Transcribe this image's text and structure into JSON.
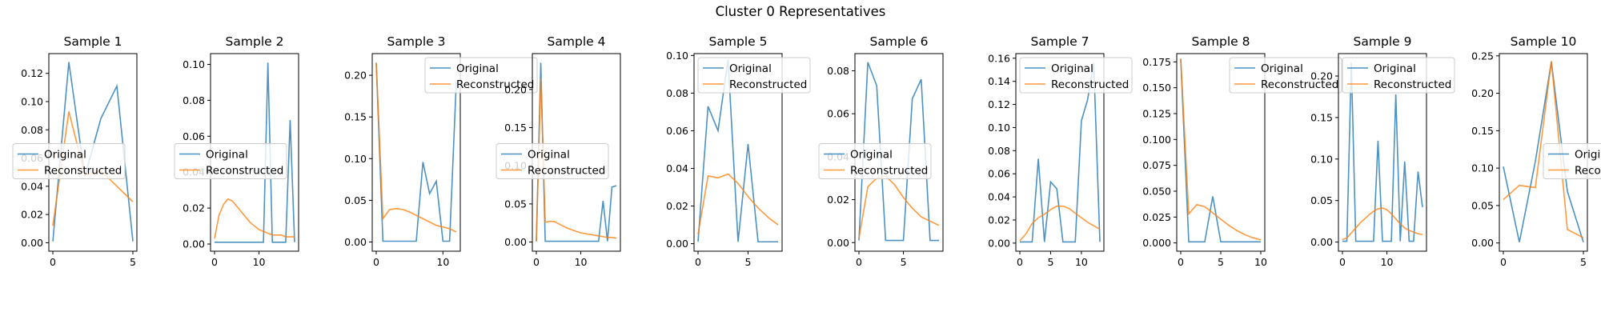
{
  "figure": {
    "title": "Cluster 0 Representatives"
  },
  "colors": {
    "original": "#1f77b4",
    "reconstructed": "#ff7f0e"
  },
  "legend": {
    "position": "variable",
    "labels": [
      "Original",
      "Reconstructed"
    ]
  },
  "chart_data": [
    {
      "type": "line",
      "title": "Sample 1",
      "xlim": [
        -0.25,
        5.25
      ],
      "ylim": [
        -0.006,
        0.134
      ],
      "xticks": [
        0,
        5
      ],
      "yticks": [
        0,
        0.02,
        0.04,
        0.06,
        0.08,
        0.1,
        0.12
      ],
      "xtick_labels": [
        "0",
        "5"
      ],
      "ytick_labels": [
        "0.00",
        "0.02",
        "0.04",
        "0.06",
        "0.08",
        "0.10",
        "0.12"
      ],
      "legend_loc": "center left",
      "series": [
        {
          "name": "Original",
          "x": [
            0,
            1,
            2,
            3,
            4,
            5
          ],
          "y": [
            0.001,
            0.128,
            0.047,
            0.088,
            0.111,
            0.001
          ]
        },
        {
          "name": "Reconstructed",
          "x": [
            0,
            1,
            2,
            3,
            4,
            5
          ],
          "y": [
            0.012,
            0.093,
            0.048,
            0.051,
            0.04,
            0.029
          ]
        }
      ]
    },
    {
      "type": "line",
      "title": "Sample 2",
      "xlim": [
        -0.9,
        18.9
      ],
      "ylim": [
        -0.004,
        0.106
      ],
      "xticks": [
        0,
        10
      ],
      "yticks": [
        0,
        0.02,
        0.04,
        0.06,
        0.08,
        0.1
      ],
      "xtick_labels": [
        "0",
        "10"
      ],
      "ytick_labels": [
        "0.00",
        "0.02",
        "0.04",
        "0.06",
        "0.08",
        "0.10"
      ],
      "legend_loc": "center left",
      "series": [
        {
          "name": "Original",
          "x": [
            0,
            1,
            2,
            3,
            4,
            5,
            6,
            7,
            8,
            9,
            10,
            11,
            12,
            13,
            14,
            15,
            16,
            17,
            18
          ],
          "y": [
            0.001,
            0.001,
            0.001,
            0.001,
            0.001,
            0.001,
            0.001,
            0.001,
            0.001,
            0.001,
            0.001,
            0.001,
            0.101,
            0.001,
            0.001,
            0.001,
            0.001,
            0.069,
            0.001
          ]
        },
        {
          "name": "Reconstructed",
          "x": [
            0,
            1,
            2,
            3,
            4,
            5,
            6,
            7,
            8,
            9,
            10,
            11,
            12,
            13,
            14,
            15,
            16,
            17,
            18
          ],
          "y": [
            0.003,
            0.016,
            0.022,
            0.025,
            0.024,
            0.021,
            0.018,
            0.015,
            0.012,
            0.01,
            0.008,
            0.007,
            0.006,
            0.005,
            0.005,
            0.005,
            0.004,
            0.004,
            0.004
          ]
        }
      ]
    },
    {
      "type": "line",
      "title": "Sample 3",
      "xlim": [
        -0.6,
        12.6
      ],
      "ylim": [
        -0.011,
        0.226
      ],
      "xticks": [
        0,
        10
      ],
      "yticks": [
        0,
        0.05,
        0.1,
        0.15,
        0.2
      ],
      "xtick_labels": [
        "0",
        "10"
      ],
      "ytick_labels": [
        "0.00",
        "0.05",
        "0.10",
        "0.15",
        "0.20"
      ],
      "legend_loc": "upper right",
      "series": [
        {
          "name": "Original",
          "x": [
            0,
            1,
            2,
            3,
            4,
            5,
            6,
            7,
            8,
            9,
            10,
            11,
            12
          ],
          "y": [
            0.215,
            0.001,
            0.001,
            0.001,
            0.001,
            0.001,
            0.001,
            0.096,
            0.058,
            0.073,
            0.001,
            0.001,
            0.192
          ]
        },
        {
          "name": "Reconstructed",
          "x": [
            0,
            1,
            2,
            3,
            4,
            5,
            6,
            7,
            8,
            9,
            10,
            11,
            12
          ],
          "y": [
            0.215,
            0.028,
            0.039,
            0.04,
            0.039,
            0.036,
            0.032,
            0.028,
            0.024,
            0.02,
            0.018,
            0.016,
            0.012
          ]
        }
      ]
    },
    {
      "type": "line",
      "title": "Sample 4",
      "xlim": [
        -0.9,
        18.9
      ],
      "ylim": [
        -0.012,
        0.247
      ],
      "xticks": [
        0,
        10
      ],
      "yticks": [
        0,
        0.05,
        0.1,
        0.15,
        0.2
      ],
      "xtick_labels": [
        "0",
        "10"
      ],
      "ytick_labels": [
        "0.00",
        "0.05",
        "0.10",
        "0.15",
        "0.20"
      ],
      "legend_loc": "center left",
      "series": [
        {
          "name": "Original",
          "x": [
            0,
            1,
            2,
            3,
            4,
            5,
            6,
            7,
            8,
            9,
            10,
            11,
            12,
            13,
            14,
            15,
            16,
            17,
            18
          ],
          "y": [
            0.001,
            0.235,
            0.001,
            0.001,
            0.001,
            0.001,
            0.001,
            0.001,
            0.001,
            0.001,
            0.001,
            0.001,
            0.001,
            0.001,
            0.001,
            0.054,
            0.001,
            0.072,
            0.074
          ]
        },
        {
          "name": "Reconstructed",
          "x": [
            0,
            1,
            2,
            3,
            4,
            5,
            6,
            7,
            8,
            9,
            10,
            11,
            12,
            13,
            14,
            15,
            16,
            17,
            18
          ],
          "y": [
            0.001,
            0.215,
            0.026,
            0.027,
            0.027,
            0.024,
            0.021,
            0.018,
            0.016,
            0.014,
            0.012,
            0.011,
            0.01,
            0.009,
            0.008,
            0.007,
            0.006,
            0.006,
            0.005
          ]
        }
      ]
    },
    {
      "type": "line",
      "title": "Sample 5",
      "xlim": [
        -0.4,
        8.4
      ],
      "ylim": [
        -0.004,
        0.101
      ],
      "xticks": [
        0,
        5
      ],
      "yticks": [
        0,
        0.02,
        0.04,
        0.06,
        0.08,
        0.1
      ],
      "xtick_labels": [
        "0",
        "5"
      ],
      "ytick_labels": [
        "0.00",
        "0.02",
        "0.04",
        "0.06",
        "0.08",
        "0.10"
      ],
      "legend_loc": "upper left",
      "series": [
        {
          "name": "Original",
          "x": [
            0,
            1,
            2,
            3,
            4,
            5,
            6,
            7,
            8
          ],
          "y": [
            0.001,
            0.073,
            0.06,
            0.098,
            0.001,
            0.053,
            0.001,
            0.001,
            0.001
          ]
        },
        {
          "name": "Reconstructed",
          "x": [
            0,
            1,
            2,
            3,
            4,
            5,
            6,
            7,
            8
          ],
          "y": [
            0.005,
            0.036,
            0.035,
            0.037,
            0.032,
            0.025,
            0.019,
            0.014,
            0.01
          ]
        }
      ]
    },
    {
      "type": "line",
      "title": "Sample 6",
      "xlim": [
        -0.45,
        9.45
      ],
      "ylim": [
        -0.004,
        0.088
      ],
      "xticks": [
        0,
        5
      ],
      "yticks": [
        0,
        0.02,
        0.04,
        0.06,
        0.08
      ],
      "xtick_labels": [
        "0",
        "5"
      ],
      "ytick_labels": [
        "0.00",
        "0.02",
        "0.04",
        "0.06",
        "0.08"
      ],
      "legend_loc": "center left",
      "series": [
        {
          "name": "Original",
          "x": [
            0,
            1,
            2,
            3,
            4,
            5,
            6,
            7,
            8,
            9
          ],
          "y": [
            0.001,
            0.084,
            0.073,
            0.001,
            0.001,
            0.001,
            0.067,
            0.076,
            0.001,
            0.001
          ]
        },
        {
          "name": "Reconstructed",
          "x": [
            0,
            1,
            2,
            3,
            4,
            5,
            6,
            7,
            8,
            9
          ],
          "y": [
            0.002,
            0.026,
            0.03,
            0.031,
            0.027,
            0.021,
            0.016,
            0.012,
            0.01,
            0.008
          ]
        }
      ]
    },
    {
      "type": "line",
      "title": "Sample 7",
      "xlim": [
        -0.65,
        13.65
      ],
      "ylim": [
        -0.007,
        0.164
      ],
      "xticks": [
        0,
        5,
        10
      ],
      "yticks": [
        0,
        0.02,
        0.04,
        0.06,
        0.08,
        0.1,
        0.12,
        0.14,
        0.16
      ],
      "xtick_labels": [
        "0",
        "5",
        "10"
      ],
      "ytick_labels": [
        "0.00",
        "0.02",
        "0.04",
        "0.06",
        "0.08",
        "0.10",
        "0.12",
        "0.14",
        "0.16"
      ],
      "legend_loc": "upper left",
      "series": [
        {
          "name": "Original",
          "x": [
            0,
            1,
            2,
            3,
            4,
            5,
            6,
            7,
            8,
            9,
            10,
            11,
            12,
            13
          ],
          "y": [
            0.001,
            0.001,
            0.001,
            0.073,
            0.001,
            0.053,
            0.047,
            0.001,
            0.001,
            0.001,
            0.106,
            0.124,
            0.156,
            0.001
          ]
        },
        {
          "name": "Reconstructed",
          "x": [
            0,
            1,
            2,
            3,
            4,
            5,
            6,
            7,
            8,
            9,
            10,
            11,
            12,
            13
          ],
          "y": [
            0.002,
            0.008,
            0.017,
            0.022,
            0.025,
            0.029,
            0.032,
            0.032,
            0.03,
            0.026,
            0.022,
            0.018,
            0.015,
            0.012
          ]
        }
      ]
    },
    {
      "type": "line",
      "title": "Sample 8",
      "xlim": [
        -0.5,
        10.5
      ],
      "ylim": [
        -0.008,
        0.183
      ],
      "xticks": [
        0,
        5,
        10
      ],
      "yticks": [
        0,
        0.025,
        0.05,
        0.075,
        0.1,
        0.125,
        0.15,
        0.175
      ],
      "xtick_labels": [
        "0",
        "5",
        "10"
      ],
      "ytick_labels": [
        "0.000",
        "0.025",
        "0.050",
        "0.075",
        "0.100",
        "0.125",
        "0.150",
        "0.175"
      ],
      "legend_loc": "upper right",
      "series": [
        {
          "name": "Original",
          "x": [
            0,
            1,
            2,
            3,
            4,
            5,
            6,
            7,
            8,
            9,
            10
          ],
          "y": [
            0.178,
            0.001,
            0.001,
            0.001,
            0.045,
            0.001,
            0.001,
            0.001,
            0.001,
            0.001,
            0.001
          ]
        },
        {
          "name": "Reconstructed",
          "x": [
            0,
            1,
            2,
            3,
            4,
            5,
            6,
            7,
            8,
            9,
            10
          ],
          "y": [
            0.178,
            0.028,
            0.037,
            0.035,
            0.029,
            0.023,
            0.017,
            0.012,
            0.008,
            0.005,
            0.003
          ]
        }
      ]
    },
    {
      "type": "line",
      "title": "Sample 9",
      "xlim": [
        -0.9,
        18.9
      ],
      "ylim": [
        -0.011,
        0.227
      ],
      "xticks": [
        0,
        10
      ],
      "yticks": [
        0,
        0.05,
        0.1,
        0.15,
        0.2
      ],
      "xtick_labels": [
        "0",
        "10"
      ],
      "ytick_labels": [
        "0.00",
        "0.05",
        "0.10",
        "0.15",
        "0.20"
      ],
      "legend_loc": "upper left",
      "series": [
        {
          "name": "Original",
          "x": [
            0,
            1,
            2,
            3,
            4,
            5,
            6,
            7,
            8,
            9,
            10,
            11,
            12,
            13,
            14,
            15,
            16,
            17,
            18
          ],
          "y": [
            0.001,
            0.001,
            0.216,
            0.001,
            0.001,
            0.001,
            0.001,
            0.001,
            0.122,
            0.001,
            0.001,
            0.001,
            0.178,
            0.001,
            0.097,
            0.001,
            0.001,
            0.085,
            0.042
          ]
        },
        {
          "name": "Reconstructed",
          "x": [
            0,
            1,
            2,
            3,
            4,
            5,
            6,
            7,
            8,
            9,
            10,
            11,
            12,
            13,
            14,
            15,
            16,
            17,
            18
          ],
          "y": [
            0.003,
            0.005,
            0.011,
            0.017,
            0.023,
            0.028,
            0.033,
            0.037,
            0.04,
            0.041,
            0.039,
            0.034,
            0.028,
            0.022,
            0.017,
            0.014,
            0.012,
            0.01,
            0.009
          ]
        }
      ]
    },
    {
      "type": "line",
      "title": "Sample 10",
      "xlim": [
        -0.25,
        5.25
      ],
      "ylim": [
        -0.011,
        0.253
      ],
      "xticks": [
        0,
        5
      ],
      "yticks": [
        0,
        0.05,
        0.1,
        0.15,
        0.2,
        0.25
      ],
      "xtick_labels": [
        "0",
        "5"
      ],
      "ytick_labels": [
        "0.00",
        "0.05",
        "0.10",
        "0.15",
        "0.20",
        "0.25"
      ],
      "legend_loc": "center right",
      "series": [
        {
          "name": "Original",
          "x": [
            0,
            1,
            2,
            3,
            4,
            5
          ],
          "y": [
            0.102,
            0.001,
            0.109,
            0.242,
            0.069,
            0.001
          ]
        },
        {
          "name": "Reconstructed",
          "x": [
            0,
            1,
            2,
            3,
            4,
            5
          ],
          "y": [
            0.058,
            0.077,
            0.074,
            0.243,
            0.018,
            0.007
          ]
        }
      ]
    }
  ]
}
